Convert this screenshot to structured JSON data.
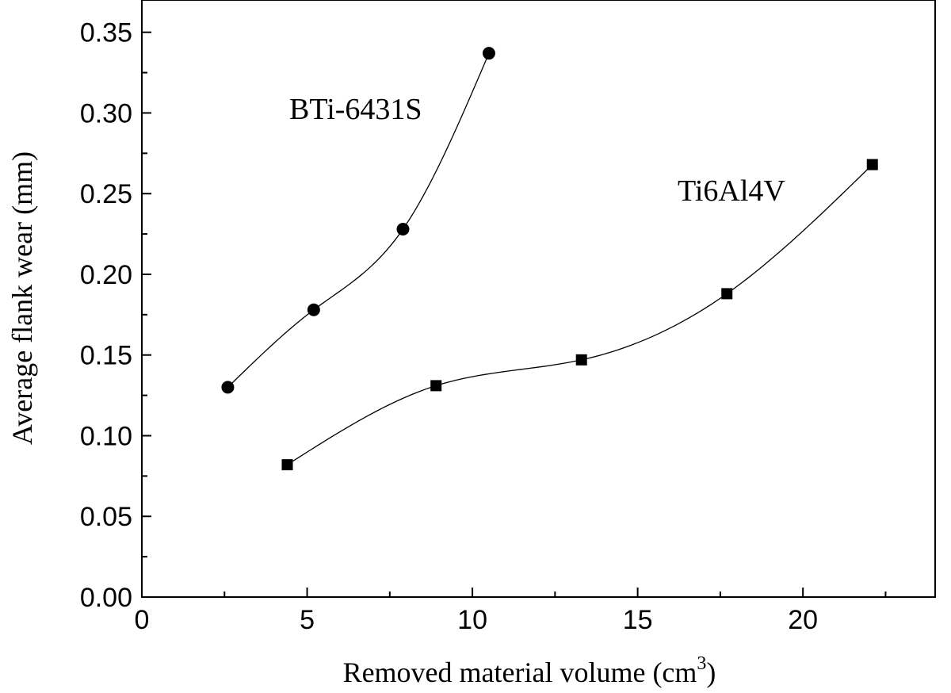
{
  "chart_data": {
    "type": "scatter",
    "xlabel": "Removed material volume (cm",
    "xlabel_sup": "3",
    "xlabel_close": ")",
    "ylabel": "Average flank wear (mm)",
    "xlim": [
      0,
      24
    ],
    "ylim": [
      0,
      0.37
    ],
    "x_ticks": [
      0,
      5,
      10,
      15,
      20
    ],
    "x_tick_labels": [
      "0",
      "5",
      "10",
      "15",
      "20"
    ],
    "x_minor_ticks": [
      2.5,
      7.5,
      12.5,
      17.5,
      22.5
    ],
    "y_ticks": [
      0,
      0.05,
      0.1,
      0.15,
      0.2,
      0.25,
      0.3,
      0.35
    ],
    "y_tick_labels": [
      "0.00",
      "0.05",
      "0.10",
      "0.15",
      "0.20",
      "0.25",
      "0.30",
      "0.35"
    ],
    "y_minor_ticks": [
      0.025,
      0.075,
      0.125,
      0.175,
      0.225,
      0.275,
      0.325
    ],
    "grid": false,
    "series": [
      {
        "name": "BTi-6431S",
        "marker": "circle",
        "x": [
          2.6,
          5.2,
          7.9,
          10.5
        ],
        "y": [
          0.13,
          0.178,
          0.228,
          0.337
        ]
      },
      {
        "name": "Ti6Al4V",
        "marker": "square",
        "x": [
          4.4,
          8.9,
          13.3,
          17.7,
          22.1
        ],
        "y": [
          0.082,
          0.131,
          0.147,
          0.188,
          0.268
        ]
      }
    ]
  }
}
